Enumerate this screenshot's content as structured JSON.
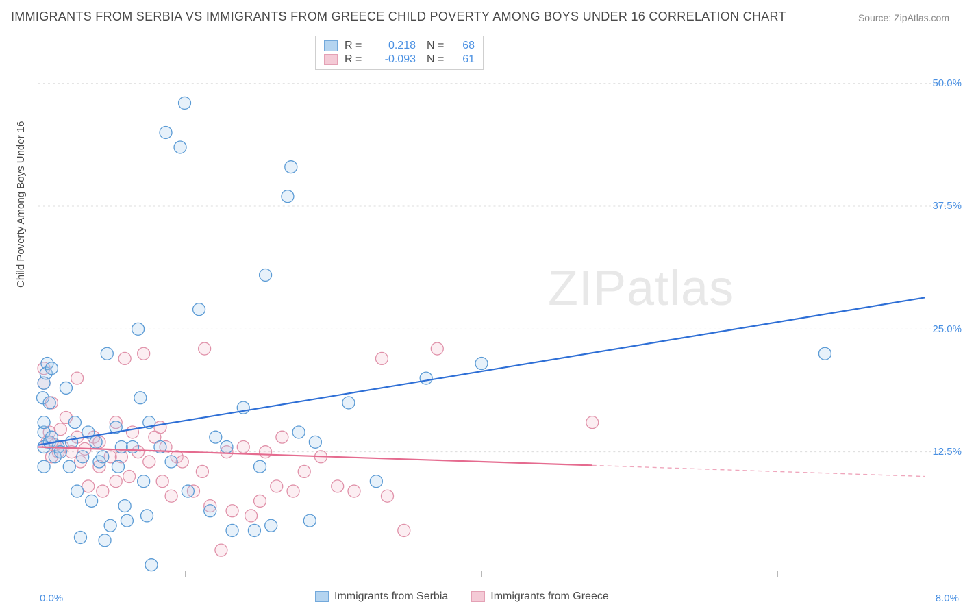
{
  "title": "IMMIGRANTS FROM SERBIA VS IMMIGRANTS FROM GREECE CHILD POVERTY AMONG BOYS UNDER 16 CORRELATION CHART",
  "source_label": "Source:",
  "source_name": "ZipAtlas.com",
  "ylabel": "Child Poverty Among Boys Under 16",
  "watermark_bold": "ZIP",
  "watermark_light": "atlas",
  "chart": {
    "type": "scatter",
    "xlim": [
      0.0,
      8.0
    ],
    "ylim": [
      0.0,
      55.0
    ],
    "y_ticks": [
      12.5,
      25.0,
      37.5,
      50.0
    ],
    "y_tick_labels": [
      "12.5%",
      "25.0%",
      "37.5%",
      "50.0%"
    ],
    "x_ticks": [
      0.0,
      1.33,
      2.67,
      4.0,
      5.33,
      6.67,
      8.0
    ],
    "x_tick_labels_shown": {
      "0": "0.0%",
      "6": "8.0%"
    },
    "background_color": "#ffffff",
    "grid_color": "#dcdcdc",
    "axis_color": "#b8b8b8",
    "tick_label_color": "#4a90e2",
    "marker_radius": 9,
    "marker_stroke_width": 1.3,
    "marker_fill_opacity": 0.28,
    "trend_line_width": 2.2,
    "series": {
      "serbia": {
        "label": "Immigrants from Serbia",
        "color_stroke": "#5b9bd5",
        "color_fill": "#a8cdee",
        "trend_color": "#2e6fd6",
        "R": "0.218",
        "N": "68",
        "trend": {
          "x1": 0.0,
          "y1": 13.2,
          "x2": 8.0,
          "y2": 28.2,
          "solid_until_x": 8.0
        },
        "points": [
          [
            0.05,
            13.0
          ],
          [
            0.05,
            14.5
          ],
          [
            0.07,
            20.5
          ],
          [
            0.08,
            21.5
          ],
          [
            0.05,
            19.5
          ],
          [
            0.04,
            18.0
          ],
          [
            0.05,
            11.0
          ],
          [
            0.05,
            15.5
          ],
          [
            0.1,
            13.5
          ],
          [
            0.1,
            17.5
          ],
          [
            0.12,
            21.0
          ],
          [
            0.12,
            14.0
          ],
          [
            0.15,
            12.0
          ],
          [
            0.18,
            13.0
          ],
          [
            0.2,
            12.5
          ],
          [
            0.25,
            19.0
          ],
          [
            0.28,
            11.0
          ],
          [
            0.3,
            13.5
          ],
          [
            0.33,
            15.5
          ],
          [
            0.35,
            8.5
          ],
          [
            0.38,
            3.8
          ],
          [
            0.4,
            12.0
          ],
          [
            0.45,
            14.5
          ],
          [
            0.48,
            7.5
          ],
          [
            0.52,
            13.5
          ],
          [
            0.55,
            11.5
          ],
          [
            0.58,
            12.0
          ],
          [
            0.62,
            22.5
          ],
          [
            0.65,
            5.0
          ],
          [
            0.7,
            15.0
          ],
          [
            0.72,
            11.0
          ],
          [
            0.75,
            13.0
          ],
          [
            0.78,
            7.0
          ],
          [
            0.8,
            5.5
          ],
          [
            0.85,
            13.0
          ],
          [
            0.9,
            25.0
          ],
          [
            0.92,
            18.0
          ],
          [
            0.95,
            9.5
          ],
          [
            0.98,
            6.0
          ],
          [
            1.0,
            15.5
          ],
          [
            1.02,
            1.0
          ],
          [
            1.1,
            13.0
          ],
          [
            1.15,
            45.0
          ],
          [
            1.2,
            11.5
          ],
          [
            1.28,
            43.5
          ],
          [
            1.32,
            48.0
          ],
          [
            1.35,
            8.5
          ],
          [
            1.45,
            27.0
          ],
          [
            1.55,
            6.5
          ],
          [
            1.6,
            14.0
          ],
          [
            1.7,
            13.0
          ],
          [
            1.75,
            4.5
          ],
          [
            1.85,
            17.0
          ],
          [
            1.95,
            4.5
          ],
          [
            2.0,
            11.0
          ],
          [
            2.05,
            30.5
          ],
          [
            2.1,
            5.0
          ],
          [
            2.25,
            38.5
          ],
          [
            2.28,
            41.5
          ],
          [
            2.35,
            14.5
          ],
          [
            2.45,
            5.5
          ],
          [
            2.5,
            13.5
          ],
          [
            2.8,
            17.5
          ],
          [
            3.05,
            9.5
          ],
          [
            3.5,
            20.0
          ],
          [
            4.0,
            21.5
          ],
          [
            7.1,
            22.5
          ],
          [
            0.6,
            3.5
          ]
        ]
      },
      "greece": {
        "label": "Immigrants from Greece",
        "color_stroke": "#e091a9",
        "color_fill": "#f3c1cf",
        "trend_color": "#e56b8f",
        "R": "-0.093",
        "N": "61",
        "trend": {
          "x1": 0.0,
          "y1": 13.0,
          "x2": 8.0,
          "y2": 10.0,
          "solid_until_x": 5.0
        },
        "points": [
          [
            0.05,
            19.5
          ],
          [
            0.05,
            21.0
          ],
          [
            0.08,
            13.5
          ],
          [
            0.1,
            14.5
          ],
          [
            0.12,
            12.0
          ],
          [
            0.12,
            17.5
          ],
          [
            0.15,
            13.2
          ],
          [
            0.18,
            12.5
          ],
          [
            0.2,
            14.8
          ],
          [
            0.22,
            13.0
          ],
          [
            0.25,
            16.0
          ],
          [
            0.3,
            12.5
          ],
          [
            0.35,
            14.0
          ],
          [
            0.35,
            20.0
          ],
          [
            0.38,
            11.5
          ],
          [
            0.42,
            12.8
          ],
          [
            0.45,
            9.0
          ],
          [
            0.5,
            14.0
          ],
          [
            0.55,
            11.0
          ],
          [
            0.55,
            13.5
          ],
          [
            0.58,
            8.5
          ],
          [
            0.65,
            12.0
          ],
          [
            0.7,
            9.5
          ],
          [
            0.7,
            15.5
          ],
          [
            0.75,
            12.0
          ],
          [
            0.78,
            22.0
          ],
          [
            0.82,
            10.0
          ],
          [
            0.85,
            14.5
          ],
          [
            0.9,
            12.5
          ],
          [
            0.95,
            22.5
          ],
          [
            1.0,
            11.5
          ],
          [
            1.05,
            14.0
          ],
          [
            1.1,
            15.0
          ],
          [
            1.12,
            9.5
          ],
          [
            1.15,
            13.0
          ],
          [
            1.2,
            8.0
          ],
          [
            1.25,
            12.0
          ],
          [
            1.3,
            11.5
          ],
          [
            1.4,
            8.5
          ],
          [
            1.48,
            10.5
          ],
          [
            1.5,
            23.0
          ],
          [
            1.55,
            7.0
          ],
          [
            1.65,
            2.5
          ],
          [
            1.7,
            12.5
          ],
          [
            1.75,
            6.5
          ],
          [
            1.85,
            13.0
          ],
          [
            1.92,
            6.0
          ],
          [
            2.0,
            7.5
          ],
          [
            2.05,
            12.5
          ],
          [
            2.15,
            9.0
          ],
          [
            2.2,
            14.0
          ],
          [
            2.3,
            8.5
          ],
          [
            2.4,
            10.5
          ],
          [
            2.55,
            12.0
          ],
          [
            2.7,
            9.0
          ],
          [
            2.85,
            8.5
          ],
          [
            3.1,
            22.0
          ],
          [
            3.15,
            8.0
          ],
          [
            3.3,
            4.5
          ],
          [
            3.6,
            23.0
          ],
          [
            5.0,
            15.5
          ]
        ]
      }
    }
  }
}
